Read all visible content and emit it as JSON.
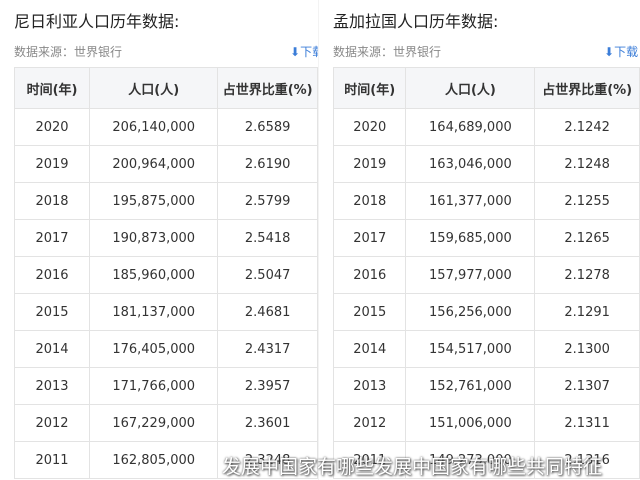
{
  "panels": [
    {
      "title": "尼日利亚人口历年数据:",
      "source": "数据来源：世界银行",
      "download": "下载",
      "table": {
        "header": [
          "时间(年)",
          "人口(人)",
          "占世界比重(%)"
        ],
        "rows": [
          [
            "2020",
            "206,140,000",
            "2.6589"
          ],
          [
            "2019",
            "200,964,000",
            "2.6190"
          ],
          [
            "2018",
            "195,875,000",
            "2.5799"
          ],
          [
            "2017",
            "190,873,000",
            "2.5418"
          ],
          [
            "2016",
            "185,960,000",
            "2.5047"
          ],
          [
            "2015",
            "181,137,000",
            "2.4681"
          ],
          [
            "2014",
            "176,405,000",
            "2.4317"
          ],
          [
            "2013",
            "171,766,000",
            "2.3957"
          ],
          [
            "2012",
            "167,229,000",
            "2.3601"
          ],
          [
            "2011",
            "162,805,000",
            "2.3248"
          ]
        ]
      }
    },
    {
      "title": "孟加拉国人口历年数据:",
      "source": "数据来源：世界银行",
      "download": "下载",
      "table": {
        "header": [
          "时间(年)",
          "人口(人)",
          "占世界比重(%)"
        ],
        "rows": [
          [
            "2020",
            "164,689,000",
            "2.1242"
          ],
          [
            "2019",
            "163,046,000",
            "2.1248"
          ],
          [
            "2018",
            "161,377,000",
            "2.1255"
          ],
          [
            "2017",
            "159,685,000",
            "2.1265"
          ],
          [
            "2016",
            "157,977,000",
            "2.1278"
          ],
          [
            "2015",
            "156,256,000",
            "2.1291"
          ],
          [
            "2014",
            "154,517,000",
            "2.1300"
          ],
          [
            "2013",
            "152,761,000",
            "2.1307"
          ],
          [
            "2012",
            "151,006,000",
            "2.1311"
          ],
          [
            "2011",
            "149,273,000",
            "2.1316"
          ]
        ]
      }
    }
  ],
  "watermark": "发展中国家有哪些发展中国家有哪些共同特征"
}
